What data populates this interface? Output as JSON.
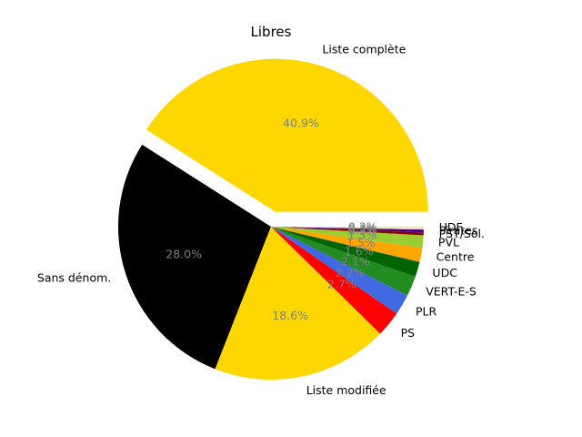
{
  "chart_data": {
    "type": "pie",
    "title": "Libres",
    "start_angle_deg": 0,
    "direction": "counterclockwise",
    "pct_label_color": "#808080",
    "slices": [
      {
        "label": "Liste complète",
        "value": 40.9,
        "pct_label": "40.9%",
        "color": "#FFD700",
        "explode": true
      },
      {
        "label": "Sans dénom.",
        "value": 28.0,
        "pct_label": "28.0%",
        "color": "#000000"
      },
      {
        "label": "Liste modifiée",
        "value": 18.6,
        "pct_label": "18.6%",
        "color": "#FFD700"
      },
      {
        "label": "PS",
        "value": 2.7,
        "pct_label": "2.7%",
        "color": "#FF0000"
      },
      {
        "label": "PLR",
        "value": 2.2,
        "pct_label": "2.2%",
        "color": "#4169E1"
      },
      {
        "label": "VERT-E-S",
        "value": 2.1,
        "pct_label": "2.1%",
        "color": "#228B22"
      },
      {
        "label": "UDC",
        "value": 1.6,
        "pct_label": "1.6%",
        "color": "#006400"
      },
      {
        "label": "Centre",
        "value": 1.5,
        "pct_label": "1.5%",
        "color": "#FFA500"
      },
      {
        "label": "PVL",
        "value": 1.3,
        "pct_label": "1.3%",
        "color": "#9ACD32"
      },
      {
        "label": "PST/Sol.",
        "value": 0.3,
        "pct_label": "0.3%",
        "color": "#8B0000"
      },
      {
        "label": "Pirates",
        "value": 0.3,
        "pct_label": "0.3%",
        "color": "#4B0082"
      },
      {
        "label": "UDF",
        "value": 0.3,
        "pct_label": "0.3%",
        "color": "#EEE8AA"
      }
    ]
  }
}
